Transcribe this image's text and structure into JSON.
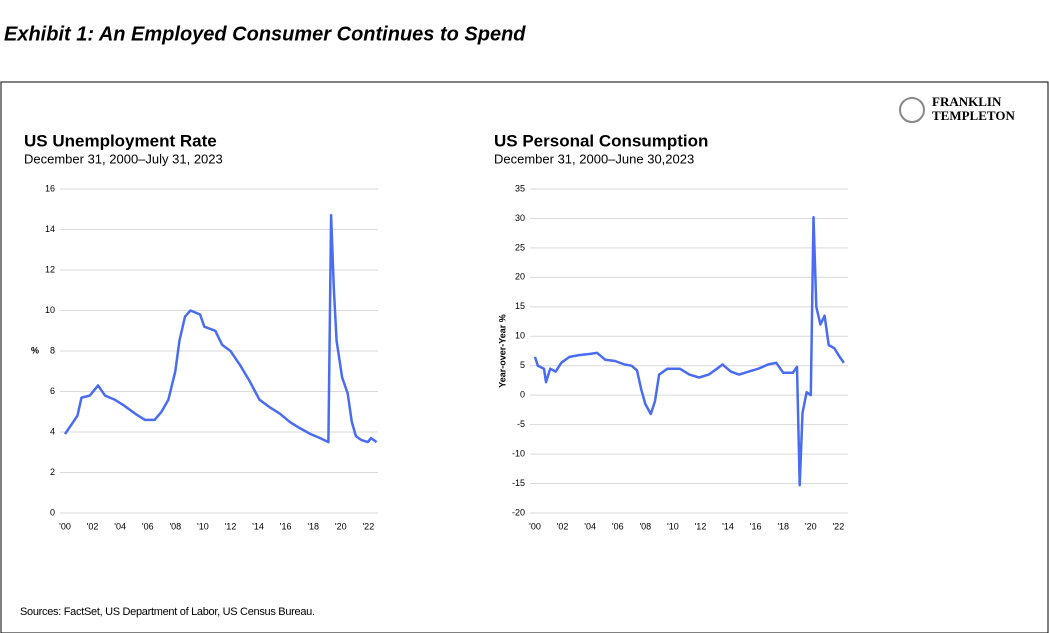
{
  "title": "Exhibit 1: An Employed Consumer Continues to Spend",
  "logo": [
    "FRANKLIN",
    "TEMPLETON"
  ],
  "source": "Sources: FactSet, US Department of Labor, US Census Bureau.",
  "chart_data": [
    {
      "type": "line",
      "title": "US Unemployment Rate",
      "subtitle": "December 31, 2000–July 31, 2023",
      "y_label": "%",
      "x": [
        2000,
        2000.4,
        2000.9,
        2001.2,
        2001.8,
        2002.4,
        2002.9,
        2003.6,
        2004.3,
        2005.1,
        2005.8,
        2006.5,
        2007.0,
        2007.5,
        2008.0,
        2008.3,
        2008.7,
        2009.1,
        2009.8,
        2010.1,
        2010.9,
        2011.4,
        2012.0,
        2012.7,
        2013.4,
        2014.1,
        2014.9,
        2015.6,
        2016.3,
        2017.0,
        2017.8,
        2018.5,
        2019.1,
        2019.3,
        2019.5,
        2019.7,
        2020.1,
        2020.5,
        2020.8,
        2021.1,
        2021.5,
        2021.96,
        2022.2,
        2022.6
      ],
      "series": [
        {
          "name": "US Unemployment Rate",
          "color": "#4a6cf0",
          "values": [
            3.9,
            4.3,
            4.8,
            5.7,
            5.8,
            6.3,
            5.8,
            5.6,
            5.3,
            4.9,
            4.6,
            4.6,
            5.0,
            5.6,
            7.0,
            8.5,
            9.7,
            10.0,
            9.8,
            9.2,
            9.0,
            8.3,
            8.0,
            7.3,
            6.5,
            5.6,
            5.2,
            4.9,
            4.5,
            4.2,
            3.9,
            3.7,
            3.5,
            14.7,
            11.0,
            8.5,
            6.7,
            5.9,
            4.5,
            3.8,
            3.6,
            3.5,
            3.7,
            3.5
          ]
        }
      ],
      "xlim": [
        2000,
        2022.7
      ],
      "xticks": [
        {
          "value": 2000,
          "label": "'00"
        },
        {
          "value": 2002,
          "label": "'02"
        },
        {
          "value": 2004,
          "label": "'04"
        },
        {
          "value": 2006,
          "label": "'06"
        },
        {
          "value": 2008,
          "label": "'08"
        },
        {
          "value": 2010,
          "label": "'10"
        },
        {
          "value": 2012,
          "label": "'12"
        },
        {
          "value": 2014,
          "label": "'14"
        },
        {
          "value": 2016,
          "label": "'16"
        },
        {
          "value": 2018,
          "label": "'18"
        },
        {
          "value": 2020,
          "label": "'20"
        },
        {
          "value": 2022,
          "label": "'22"
        }
      ],
      "ylim": [
        0,
        16
      ],
      "yticks": [
        0,
        2,
        4,
        6,
        8,
        10,
        12,
        14,
        16
      ],
      "grid": true
    },
    {
      "type": "line",
      "title": "US Personal Consumption",
      "subtitle": "December 31, 2000–June 30,2023",
      "y_label": "Year-over-Year %",
      "x": [
        2000,
        2000.2,
        2000.65,
        2000.8,
        2001.1,
        2001.5,
        2001.9,
        2002.5,
        2003.2,
        2004.0,
        2004.5,
        2005.1,
        2005.8,
        2006.5,
        2007.0,
        2007.4,
        2007.7,
        2008.0,
        2008.4,
        2008.7,
        2009.0,
        2009.6,
        2010.5,
        2011.2,
        2011.9,
        2012.6,
        2013.2,
        2013.6,
        2014.2,
        2014.8,
        2015.5,
        2016.2,
        2016.9,
        2017.5,
        2018.0,
        2018.7,
        2019.0,
        2019.2,
        2019.4,
        2019.7,
        2020.0,
        2020.2,
        2020.4,
        2020.7,
        2021.0,
        2021.3,
        2021.7,
        2022.1,
        2022.4
      ],
      "series": [
        {
          "name": "US Personal Consumption",
          "color": "#4a6cf0",
          "values": [
            6.5,
            5.0,
            4.5,
            2.2,
            4.5,
            4.0,
            5.5,
            6.5,
            6.8,
            7.0,
            7.2,
            6.0,
            5.8,
            5.2,
            5.0,
            4.2,
            1.0,
            -1.5,
            -3.2,
            -1.0,
            3.5,
            4.5,
            4.5,
            3.5,
            3.0,
            3.5,
            4.5,
            5.2,
            4.0,
            3.5,
            4.0,
            4.5,
            5.2,
            5.5,
            3.8,
            3.8,
            4.8,
            -15.3,
            -3.0,
            0.5,
            0.0,
            30.2,
            15.0,
            12.0,
            13.5,
            8.5,
            8.0,
            6.5,
            5.5
          ]
        }
      ],
      "xlim": [
        2000,
        2022.7
      ],
      "xticks": [
        {
          "value": 2000,
          "label": "'00"
        },
        {
          "value": 2002,
          "label": "'02"
        },
        {
          "value": 2004,
          "label": "'04"
        },
        {
          "value": 2006,
          "label": "'06"
        },
        {
          "value": 2008,
          "label": "'08"
        },
        {
          "value": 2010,
          "label": "'10"
        },
        {
          "value": 2012,
          "label": "'12"
        },
        {
          "value": 2014,
          "label": "'14"
        },
        {
          "value": 2016,
          "label": "'16"
        },
        {
          "value": 2018,
          "label": "'18"
        },
        {
          "value": 2020,
          "label": "'20"
        },
        {
          "value": 2022,
          "label": "'22"
        }
      ],
      "ylim": [
        -20,
        35
      ],
      "yticks": [
        -20,
        -15,
        -10,
        -5,
        0,
        5,
        10,
        15,
        20,
        25,
        30,
        35
      ],
      "grid": true
    }
  ]
}
